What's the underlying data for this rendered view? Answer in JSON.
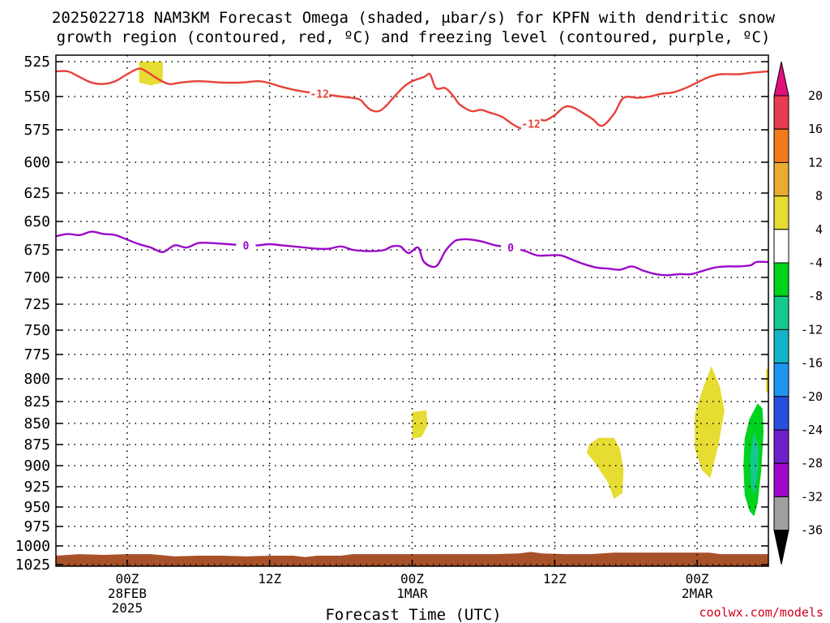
{
  "chart_data": {
    "type": "contour",
    "title_line1": "2025022718 NAM3KM Forecast Omega (shaded, μbar/s) for KPFN with dendritic snow",
    "title_line2": "growth region (contoured, red, ºC) and freezing level (contoured, purple, ºC)",
    "xlabel": "Forecast Time (UTC)",
    "credit": "coolwx.com/models",
    "ylim": [
      1025,
      525
    ],
    "y_ticks": [
      "525",
      "550",
      "575",
      "600",
      "625",
      "650",
      "675",
      "700",
      "725",
      "750",
      "775",
      "800",
      "825",
      "850",
      "875",
      "900",
      "925",
      "950",
      "975",
      "1000",
      "1025"
    ],
    "x_ticks": [
      {
        "time_h": 6,
        "label": "00Z",
        "sub1": "28FEB",
        "sub2": "2025"
      },
      {
        "time_h": 18,
        "label": "12Z",
        "sub1": "",
        "sub2": ""
      },
      {
        "time_h": 30,
        "label": "00Z",
        "sub1": "1MAR",
        "sub2": ""
      },
      {
        "time_h": 42,
        "label": "12Z",
        "sub1": "",
        "sub2": ""
      },
      {
        "time_h": 54,
        "label": "00Z",
        "sub1": "2MAR",
        "sub2": ""
      }
    ],
    "xlim_h": [
      0,
      60
    ],
    "contours": [
      {
        "level_label": "-12",
        "color": "#e8413a",
        "label_at_h": [
          22.2,
          40.0
        ],
        "points": [
          [
            0,
            532
          ],
          [
            1,
            532
          ],
          [
            2,
            536
          ],
          [
            3,
            540
          ],
          [
            4,
            541
          ],
          [
            5,
            539
          ],
          [
            6,
            534
          ],
          [
            7,
            530
          ],
          [
            7.8,
            533
          ],
          [
            8.5,
            537
          ],
          [
            9.5,
            541
          ],
          [
            10.5,
            540
          ],
          [
            12,
            539
          ],
          [
            14,
            540
          ],
          [
            15.5,
            540
          ],
          [
            17,
            539
          ],
          [
            17.8,
            540
          ],
          [
            19,
            543
          ],
          [
            20.5,
            546
          ],
          [
            22.2,
            548
          ],
          [
            24,
            550
          ],
          [
            25.5,
            552
          ],
          [
            26,
            556
          ],
          [
            26.5,
            560
          ],
          [
            27.2,
            561
          ],
          [
            27.8,
            557
          ],
          [
            28.5,
            550
          ],
          [
            29.3,
            543
          ],
          [
            30,
            539
          ],
          [
            31,
            536
          ],
          [
            31.5,
            534
          ],
          [
            32,
            544
          ],
          [
            32.8,
            544
          ],
          [
            33.5,
            550
          ],
          [
            34,
            556
          ],
          [
            35,
            561
          ],
          [
            35.8,
            560
          ],
          [
            36.5,
            562
          ],
          [
            37.5,
            565
          ],
          [
            38.5,
            571
          ],
          [
            39.2,
            574
          ],
          [
            39.8,
            572
          ],
          [
            40.5,
            567
          ],
          [
            41.2,
            568
          ],
          [
            42,
            564
          ],
          [
            42.8,
            558
          ],
          [
            43.5,
            558
          ],
          [
            44.5,
            563
          ],
          [
            45.2,
            567
          ],
          [
            46,
            572
          ],
          [
            47,
            563
          ],
          [
            47.8,
            551
          ],
          [
            49,
            551
          ],
          [
            50,
            550
          ],
          [
            51,
            548
          ],
          [
            52,
            547
          ],
          [
            53,
            544
          ],
          [
            54,
            540
          ],
          [
            55,
            536
          ],
          [
            56,
            534
          ],
          [
            57.5,
            534
          ],
          [
            58.5,
            533
          ],
          [
            60,
            532
          ]
        ]
      },
      {
        "level_label": "0",
        "color": "#9b08c8",
        "label_at_h": [
          16.0,
          38.3
        ],
        "points": [
          [
            0,
            663
          ],
          [
            1,
            661
          ],
          [
            2,
            662
          ],
          [
            3,
            659
          ],
          [
            4,
            661
          ],
          [
            5,
            662
          ],
          [
            6,
            666
          ],
          [
            7,
            670
          ],
          [
            8,
            673
          ],
          [
            9,
            677
          ],
          [
            10,
            671
          ],
          [
            11,
            673
          ],
          [
            12,
            669
          ],
          [
            13,
            669
          ],
          [
            14.5,
            670
          ],
          [
            16,
            671
          ],
          [
            17,
            671
          ],
          [
            18,
            670
          ],
          [
            19,
            671
          ],
          [
            20,
            672
          ],
          [
            21,
            673
          ],
          [
            22,
            674
          ],
          [
            23,
            674
          ],
          [
            24,
            672
          ],
          [
            25,
            675
          ],
          [
            26,
            676
          ],
          [
            27,
            676
          ],
          [
            27.7,
            675
          ],
          [
            28.3,
            672
          ],
          [
            29,
            672
          ],
          [
            29.7,
            678
          ],
          [
            30.5,
            673
          ],
          [
            31,
            686
          ],
          [
            32,
            690
          ],
          [
            32.8,
            676
          ],
          [
            33.5,
            668
          ],
          [
            34,
            666
          ],
          [
            35,
            666
          ],
          [
            36,
            668
          ],
          [
            37,
            671
          ],
          [
            38.3,
            673
          ],
          [
            39.5,
            676
          ],
          [
            40.5,
            680
          ],
          [
            41.5,
            680
          ],
          [
            42.5,
            680
          ],
          [
            43.5,
            684
          ],
          [
            44.5,
            688
          ],
          [
            45.5,
            691
          ],
          [
            46.5,
            692
          ],
          [
            47.5,
            693
          ],
          [
            48.5,
            690
          ],
          [
            49.5,
            694
          ],
          [
            50.5,
            697
          ],
          [
            51.5,
            698
          ],
          [
            52.5,
            697
          ],
          [
            53.5,
            697
          ],
          [
            54.5,
            694
          ],
          [
            55.5,
            691
          ],
          [
            56.5,
            690
          ],
          [
            57.5,
            690
          ],
          [
            58.5,
            689
          ],
          [
            59,
            686
          ],
          [
            60,
            686
          ]
        ]
      }
    ],
    "omega_regions": [
      {
        "color": "#e6dc32",
        "points": [
          [
            7,
            525
          ],
          [
            9,
            525
          ],
          [
            9,
            540
          ],
          [
            8,
            542
          ],
          [
            7,
            540
          ]
        ]
      },
      {
        "color": "#e6dc32",
        "points": [
          [
            30,
            837
          ],
          [
            31.2,
            835
          ],
          [
            31.3,
            852
          ],
          [
            30.8,
            866
          ],
          [
            30,
            868
          ]
        ]
      },
      {
        "color": "#e6dc32",
        "points": [
          [
            45.7,
            867
          ],
          [
            47,
            867
          ],
          [
            47.5,
            880
          ],
          [
            47.8,
            905
          ],
          [
            47.7,
            933
          ],
          [
            47,
            940
          ],
          [
            46.5,
            920
          ],
          [
            45.3,
            895
          ],
          [
            44.7,
            885
          ],
          [
            44.9,
            875
          ]
        ]
      },
      {
        "color": "#e6dc32",
        "points": [
          [
            55.2,
            787
          ],
          [
            55.9,
            808
          ],
          [
            56.3,
            835
          ],
          [
            55.8,
            875
          ],
          [
            55.1,
            915
          ],
          [
            54.4,
            905
          ],
          [
            53.8,
            880
          ],
          [
            53.8,
            840
          ],
          [
            54.5,
            810
          ]
        ]
      },
      {
        "color": "#e6dc32",
        "points": [
          [
            59.8,
            790
          ],
          [
            60,
            790
          ],
          [
            60,
            815
          ],
          [
            59.8,
            815
          ]
        ]
      },
      {
        "color": "#00d21e",
        "points": [
          [
            59.1,
            827
          ],
          [
            59.5,
            833
          ],
          [
            59.6,
            860
          ],
          [
            59.4,
            905
          ],
          [
            59.1,
            945
          ],
          [
            58.8,
            962
          ],
          [
            58.4,
            955
          ],
          [
            58,
            935
          ],
          [
            57.9,
            900
          ],
          [
            58,
            868
          ],
          [
            58.4,
            845
          ]
        ]
      },
      {
        "color": "#14c890",
        "points": [
          [
            58.8,
            860
          ],
          [
            59.2,
            880
          ],
          [
            59.1,
            910
          ],
          [
            58.8,
            935
          ],
          [
            58.5,
            920
          ],
          [
            58.5,
            885
          ]
        ]
      }
    ],
    "terrain": {
      "color": "#a8522a",
      "top_points": [
        [
          0,
          1013
        ],
        [
          2,
          1011
        ],
        [
          4,
          1012
        ],
        [
          6,
          1011
        ],
        [
          8,
          1011
        ],
        [
          10,
          1014
        ],
        [
          12,
          1013
        ],
        [
          14,
          1013
        ],
        [
          16,
          1014
        ],
        [
          18,
          1013
        ],
        [
          20,
          1013
        ],
        [
          21,
          1015
        ],
        [
          22,
          1013
        ],
        [
          24,
          1013
        ],
        [
          25,
          1011
        ],
        [
          27,
          1011
        ],
        [
          29,
          1011
        ],
        [
          31,
          1011
        ],
        [
          33,
          1011
        ],
        [
          35,
          1011
        ],
        [
          37,
          1011
        ],
        [
          39,
          1010
        ],
        [
          40,
          1008
        ],
        [
          41,
          1010
        ],
        [
          43,
          1011
        ],
        [
          45,
          1011
        ],
        [
          47,
          1009
        ],
        [
          49,
          1009
        ],
        [
          51,
          1009
        ],
        [
          53,
          1009
        ],
        [
          55,
          1009
        ],
        [
          56,
          1011
        ],
        [
          58,
          1011
        ],
        [
          60,
          1011
        ]
      ]
    },
    "colorbar": {
      "labels": [
        "20",
        "16",
        "12",
        "8",
        "4",
        "-4",
        "-8",
        "-12",
        "-16",
        "-20",
        "-24",
        "-28",
        "-32",
        "-36"
      ],
      "colors": [
        "#e83c50",
        "#f37b1e",
        "#e8ac30",
        "#e6dc32",
        "#ffffff",
        "#00d21e",
        "#14c890",
        "#14b4c8",
        "#1e96f0",
        "#2850e0",
        "#6e20c8",
        "#a008c8",
        "#a0a0a0"
      ],
      "top_cap": "#e0107c",
      "bottom_cap": "#000000"
    }
  }
}
